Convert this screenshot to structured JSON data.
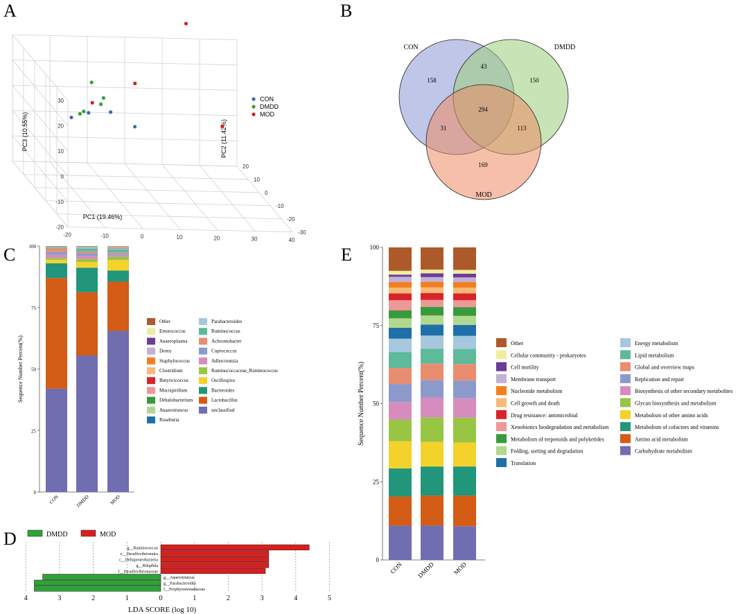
{
  "figure": {
    "panel_letters": [
      "A",
      "B",
      "C",
      "D",
      "E"
    ]
  },
  "chart_data": [
    {
      "panel": "A",
      "type": "scatter",
      "title": "",
      "xlabel": "PC1 (19.46%)",
      "ylabel": "PC2 (11.42%)",
      "zlabel": "PC3 (10.55%)",
      "x_ticks": [
        "-20",
        "-10",
        "0",
        "10",
        "20",
        "30",
        "40"
      ],
      "y_ticks": [
        "-30",
        "-20",
        "-10",
        "0",
        "10",
        "20"
      ],
      "z_ticks": [
        "-20",
        "-10",
        "0",
        "10",
        "20",
        "30"
      ],
      "legend": [
        {
          "name": "CON",
          "color": "#3d6ab0"
        },
        {
          "name": "DMDD",
          "color": "#2ea236"
        },
        {
          "name": "MOD",
          "color": "#d91e1e"
        }
      ],
      "series": [
        {
          "name": "CON",
          "color": "#3d6ab0",
          "points": [
            [
              -9,
              4,
              6
            ],
            [
              -5,
              2,
              9
            ],
            [
              0,
              -1,
              11
            ],
            [
              5,
              -6,
              8
            ]
          ]
        },
        {
          "name": "DMDD",
          "color": "#2ea236",
          "points": [
            [
              -7,
              3,
              8
            ],
            [
              -6,
              3,
              9
            ],
            [
              -2,
              1,
              13
            ],
            [
              -1,
              2,
              15
            ],
            [
              -3,
              6,
              19
            ]
          ]
        },
        {
          "name": "MOD",
          "color": "#d91e1e",
          "points": [
            [
              -4,
              2,
              13
            ],
            [
              8,
              4,
              20
            ],
            [
              24,
              12,
              40
            ],
            [
              26,
              -14,
              13
            ]
          ]
        }
      ]
    },
    {
      "panel": "B",
      "type": "venn",
      "sets": [
        "CON",
        "DMDD",
        "MOD"
      ],
      "colors": [
        "#8d98d3",
        "#9bcd7c",
        "#ec8a64"
      ],
      "regions": {
        "CON_only": "158",
        "DMDD_only": "150",
        "MOD_only": "169",
        "CON_DMDD": "43",
        "CON_MOD": "31",
        "DMDD_MOD": "113",
        "all": "294"
      }
    },
    {
      "panel": "C",
      "type": "bar",
      "stacked": true,
      "ylabel": "Sequence Number Percent(%)",
      "xlabel": "",
      "categories": [
        "CON",
        "DMDD",
        "MOD"
      ],
      "y_ticks": [
        "0",
        "25",
        "50",
        "75",
        "100"
      ],
      "ylim": [
        0,
        100
      ],
      "series": [
        {
          "name": "unclassified",
          "color": "#716db1",
          "values": [
            42,
            55.5,
            65.5
          ]
        },
        {
          "name": "Lactobacillus",
          "color": "#d35c16",
          "values": [
            45,
            25.7,
            20
          ]
        },
        {
          "name": "Bacteroides",
          "color": "#22967a",
          "values": [
            6,
            10,
            4.5
          ]
        },
        {
          "name": "Oscillospira",
          "color": "#f3d22c",
          "values": [
            1.4,
            2.3,
            4.3
          ]
        },
        {
          "name": "Ruminococcaceae_Ruminococcus",
          "color": "#98c544",
          "values": [
            0.7,
            1.2,
            1.3
          ]
        },
        {
          "name": "Adlercreutzia",
          "color": "#d68dbd",
          "values": [
            1.3,
            1.3,
            0.8
          ]
        },
        {
          "name": "Coprococcus",
          "color": "#8c9acb",
          "values": [
            1.1,
            1.1,
            0.6
          ]
        },
        {
          "name": "Achromobacter",
          "color": "#e98d71",
          "values": [
            1.5,
            0.7,
            0.4
          ]
        },
        {
          "name": "Ruminococcus",
          "color": "#5fb99b",
          "values": [
            0.3,
            1.2,
            1.2
          ]
        },
        {
          "name": "Parabacteroides",
          "color": "#a5c8de",
          "values": [
            0.2,
            0.5,
            0.3
          ]
        },
        {
          "name": "Roseburia",
          "color": "#1f6fa8",
          "values": [
            0.1,
            0.1,
            0.1
          ]
        },
        {
          "name": "Anaerotruncus",
          "color": "#b2d88f",
          "values": [
            0.1,
            0.1,
            0.1
          ]
        },
        {
          "name": "Dehalobacterium",
          "color": "#399a3c",
          "values": [
            0.1,
            0.1,
            0.1
          ]
        },
        {
          "name": "Mucispirillum",
          "color": "#ee9897",
          "values": [
            0.1,
            0.1,
            0.1
          ]
        },
        {
          "name": "Butyricicoccus",
          "color": "#d8232a",
          "values": [
            0.1,
            0.1,
            0.1
          ]
        },
        {
          "name": "Clostridium",
          "color": "#f7b97a",
          "values": [
            0.1,
            0.1,
            0.1
          ]
        },
        {
          "name": "Staphylococcus",
          "color": "#f07f1f",
          "values": [
            0.1,
            0.1,
            0.1
          ]
        },
        {
          "name": "Dorea",
          "color": "#c3b0d6",
          "values": [
            0.1,
            0.1,
            0.1
          ]
        },
        {
          "name": "Anaeroplasma",
          "color": "#6a3d96",
          "values": [
            0.1,
            0.1,
            0.1
          ]
        },
        {
          "name": "Enterococcus",
          "color": "#f1eda0",
          "values": [
            0.1,
            0.1,
            0.1
          ]
        },
        {
          "name": "Other",
          "color": "#ad5a2b",
          "values": [
            -0.7,
            -0.4,
            0.1
          ]
        }
      ],
      "legend": {
        "columns": [
          [
            "Other",
            "Enterococcus",
            "Anaeroplasma",
            "Dorea",
            "Staphylococcus",
            "Clostridium",
            "Butyricicoccus",
            "Mucispirillum",
            "Dehalobacterium",
            "Anaerotruncus",
            "Roseburia"
          ],
          [
            "Parabacteroides",
            "Ruminococcus",
            "Achromobacter",
            "Coprococcus",
            "Adlercreutzia",
            "Ruminococcaceae_Ruminococcus",
            "Oscillospira",
            "Bacteroides",
            "Lactobacillus",
            "unclassified"
          ]
        ]
      }
    },
    {
      "panel": "D",
      "type": "bar",
      "orientation": "horizontal",
      "title": "",
      "xlabel": "LDA SCORE (log 10)",
      "x_ticks": [
        "4",
        "3",
        "2",
        "1",
        "0",
        "1",
        "2",
        "3",
        "4",
        "5"
      ],
      "legend": [
        {
          "name": "DMDD",
          "color": "#2ea236"
        },
        {
          "name": "MOD",
          "color": "#d91e1e"
        }
      ],
      "categories": [
        "g__Ruminococcus",
        "o__Desulfovibrionales",
        "c__Deltaproteobacteria",
        "g__Bilophila",
        "f__Desulfovibrionaceae",
        "g__Anaerotruncus",
        "g__Parabacteroides",
        "f__Porphyromonadaceae"
      ],
      "groups": [
        "MOD",
        "MOD",
        "MOD",
        "MOD",
        "MOD",
        "DMDD",
        "DMDD",
        "DMDD"
      ],
      "values": [
        4.4,
        3.2,
        3.2,
        3.2,
        3.1,
        3.5,
        3.75,
        3.75
      ]
    },
    {
      "panel": "E",
      "type": "bar",
      "stacked": true,
      "ylabel": "Sequence Number Percent(%)",
      "xlabel": "",
      "categories": [
        "CON",
        "DMDD",
        "MOD"
      ],
      "y_ticks": [
        "0",
        "25",
        "50",
        "75",
        "100"
      ],
      "ylim": [
        0,
        100
      ],
      "series": [
        {
          "name": "Carbohydrate metabolism",
          "color": "#716db1",
          "values": [
            11,
            11,
            10.8
          ]
        },
        {
          "name": "Amino acid metabolism",
          "color": "#d35c16",
          "values": [
            9.3,
            9.6,
            9.8
          ]
        },
        {
          "name": "Metabolism of cofactors and vitamins",
          "color": "#22967a",
          "values": [
            9,
            9.3,
            9.3
          ]
        },
        {
          "name": "Metabolism of other amino acids",
          "color": "#f3d22c",
          "values": [
            8.7,
            7.9,
            7.7
          ]
        },
        {
          "name": "Glycan biosynthesis and metabolism",
          "color": "#98c544",
          "values": [
            6.9,
            7.8,
            7.9
          ]
        },
        {
          "name": "Biosynthesis of other secondary metabolites",
          "color": "#d68dbd",
          "values": [
            5.6,
            6.3,
            6.3
          ]
        },
        {
          "name": "Replication and repair",
          "color": "#8c9acb",
          "values": [
            5.8,
            5.6,
            5.6
          ]
        },
        {
          "name": "Global and overview maps",
          "color": "#e98d71",
          "values": [
            5.1,
            5.3,
            5.3
          ]
        },
        {
          "name": "Lipid metabolism",
          "color": "#5fb99b",
          "values": [
            5.1,
            4.8,
            4.8
          ]
        },
        {
          "name": "Energy metabolism",
          "color": "#a5c8de",
          "values": [
            4.3,
            4.2,
            4.2
          ]
        },
        {
          "name": "Translation",
          "color": "#1f6fa8",
          "values": [
            3.5,
            3.5,
            3.5
          ]
        },
        {
          "name": "Folding, sorting and degradation",
          "color": "#b2d88f",
          "values": [
            3,
            2.9,
            2.9
          ]
        },
        {
          "name": "Metabolism of terpenoids and polyketides",
          "color": "#399a3c",
          "values": [
            2.6,
            2.8,
            2.8
          ]
        },
        {
          "name": "Xenobiotics biodegradation and metabolism",
          "color": "#ee9897",
          "values": [
            3.2,
            2.2,
            2.2
          ]
        },
        {
          "name": "Drug resistance: antimicrobial",
          "color": "#d8232a",
          "values": [
            2.2,
            2.2,
            2.2
          ]
        },
        {
          "name": "Cell growth and death",
          "color": "#f7b97a",
          "values": [
            1.8,
            1.8,
            1.8
          ]
        },
        {
          "name": "Nucleotide metabolism",
          "color": "#f07f1f",
          "values": [
            1.8,
            1.8,
            1.8
          ]
        },
        {
          "name": "Membrane transport",
          "color": "#c3b0d6",
          "values": [
            1.7,
            1.5,
            1.5
          ]
        },
        {
          "name": "Cell motility",
          "color": "#6a3d96",
          "values": [
            0.7,
            1.2,
            1.2
          ]
        },
        {
          "name": "Cellular community - prokaryotes",
          "color": "#f1eda0",
          "values": [
            1.2,
            1.2,
            1.2
          ]
        },
        {
          "name": "Other",
          "color": "#ad5a2b",
          "values": [
            7.5,
            7.1,
            7.2
          ]
        }
      ],
      "legend": {
        "columns": [
          [
            "Other",
            "Cellular community - prokaryotes",
            "Cell motility",
            "Membrane transport",
            "Nucleotide metabolism",
            "Cell growth and death",
            "Drug resistance: antimicrobial",
            "Xenobiotics biodegradation and metabolism",
            "Metabolism of terpenoids and polyketides",
            "Folding, sorting and degradation",
            "Translation"
          ],
          [
            "Energy metabolism",
            "Lipid metabolism",
            "Global and overview maps",
            "Replication and repair",
            "Biosynthesis of other secondary metabolites",
            "Glycan biosynthesis and metabolism",
            "Metabolism of other amino acids",
            "Metabolism of cofactors and vitamins",
            "Amino acid metabolism",
            "Carbohydrate metabolism"
          ]
        ]
      }
    }
  ]
}
